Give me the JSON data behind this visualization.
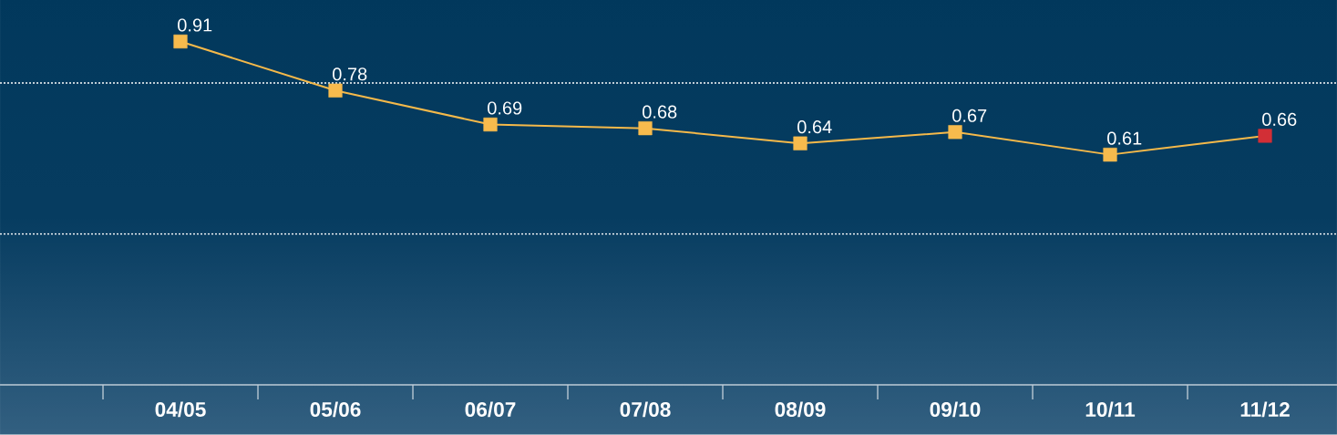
{
  "chart_data": {
    "type": "line",
    "categories": [
      "04/05",
      "05/06",
      "06/07",
      "07/08",
      "08/09",
      "09/10",
      "10/11",
      "11/12"
    ],
    "series": [
      {
        "color": "#f5b94a",
        "colors": [
          "#f7bb4d",
          "#f7bb4d",
          "#f7bb4d",
          "#f7bb4d",
          "#f7bb4d",
          "#f7bb4d",
          "#f7bb4d",
          "#d22f36"
        ],
        "values": [
          0.91,
          0.78,
          0.69,
          0.68,
          0.64,
          0.67,
          0.61,
          0.66
        ]
      }
    ],
    "ylim": [
      0,
      1.02
    ],
    "tick_labels": "x",
    "ref_lines": [
      {
        "axis": "y",
        "value": 0.4,
        "color": "#ffffff",
        "line_style": "dotted"
      },
      {
        "axis": "y",
        "value": 0.8,
        "color": "#ffffff",
        "line_style": "dotted"
      }
    ],
    "marker": "square",
    "line_style": "solid",
    "data_labels": true
  }
}
